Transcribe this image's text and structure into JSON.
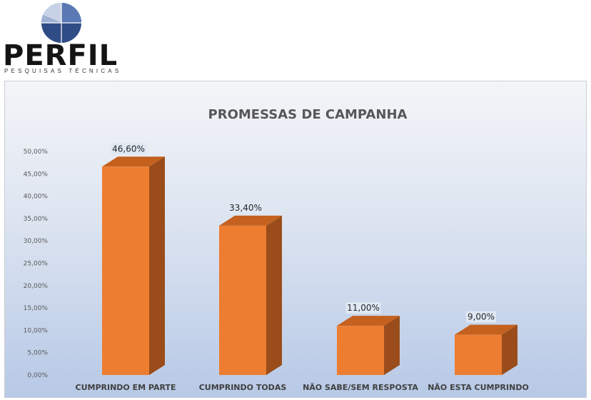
{
  "logo": {
    "brand": "PERFIL",
    "tagline": "PESQUISAS TÉCNICAS",
    "icon": "pie-logo-icon",
    "icon_colors": [
      "#2f4c86",
      "#5b79b4",
      "#9eb1d4",
      "#c7d2e6"
    ]
  },
  "colors": {
    "bar_front": "#ed7d31",
    "bar_side": "#9a4d1a",
    "bar_top": "#c4611f",
    "label_box": "#dfe8f3"
  },
  "chart_data": {
    "type": "bar",
    "title": "PROMESSAS DE CAMPANHA",
    "categories": [
      "CUMPRINDO EM PARTE",
      "CUMPRINDO TODAS",
      "NÃO SABE/SEM RESPOSTA",
      "NÃO ESTA CUMPRINDO"
    ],
    "values": [
      46.6,
      33.4,
      11.0,
      9.0
    ],
    "data_labels": [
      "46,60%",
      "33,40%",
      "11,00%",
      "9,00%"
    ],
    "ylim": [
      0,
      50
    ],
    "yticks": [
      "0,00%",
      "5,00%",
      "10,00%",
      "15,00%",
      "20,00%",
      "25,00%",
      "30,00%",
      "35,00%",
      "40,00%",
      "45,00%",
      "50,00%"
    ],
    "xlabel": "",
    "ylabel": "",
    "grid": false,
    "legend": "none",
    "style": "3d-column"
  }
}
